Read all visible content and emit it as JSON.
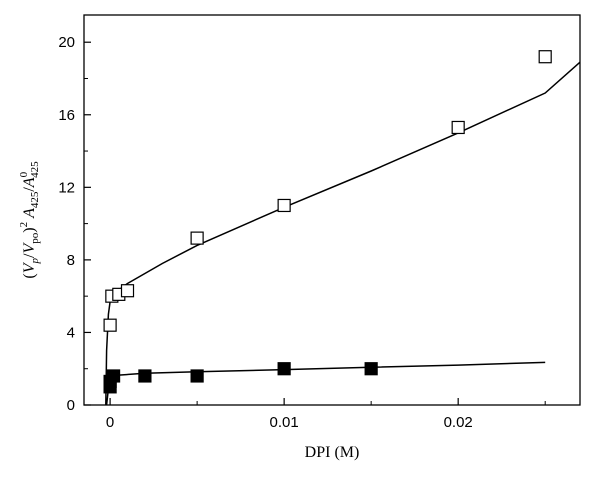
{
  "chart_data": {
    "type": "scatter",
    "title": "",
    "xlabel": "DPI (M)",
    "ylabel": {
      "full": "(Vp/Vpo)^2 A425/A0425",
      "p1": "(",
      "v1": "V",
      "s1": "p",
      "slash": "/",
      "v2": "V",
      "s2": "po",
      "p2": ")",
      "sup2": "2",
      "a1": "A",
      "s3": "425",
      "slash2": "/",
      "a2": "A",
      "sup0": "0",
      "s4": "425"
    },
    "xlim": [
      -0.0015,
      0.027
    ],
    "ylim": [
      0,
      21.5
    ],
    "x_ticks": [
      0,
      0.01,
      0.02
    ],
    "x_tick_labels": [
      "0",
      "0.01",
      "0.02"
    ],
    "y_ticks": [
      0,
      4,
      8,
      12,
      16,
      20
    ],
    "y_tick_labels": [
      "0",
      "4",
      "8",
      "12",
      "16",
      "20"
    ],
    "grid": false,
    "legend": "none",
    "series": [
      {
        "marker": "open-square",
        "color": "#000000",
        "points": [
          {
            "x": 0.0,
            "y": 4.4
          },
          {
            "x": 0.0001,
            "y": 6.0
          },
          {
            "x": 0.0005,
            "y": 6.1
          },
          {
            "x": 0.001,
            "y": 6.3
          },
          {
            "x": 0.005,
            "y": 9.2
          },
          {
            "x": 0.01,
            "y": 11.0
          },
          {
            "x": 0.02,
            "y": 15.3
          },
          {
            "x": 0.025,
            "y": 19.2
          }
        ]
      },
      {
        "marker": "filled-square",
        "color": "#000000",
        "points": [
          {
            "x": 0.0,
            "y": 1.0
          },
          {
            "x": 0.0,
            "y": 1.3
          },
          {
            "x": 0.0002,
            "y": 1.6
          },
          {
            "x": 0.002,
            "y": 1.6
          },
          {
            "x": 0.005,
            "y": 1.6
          },
          {
            "x": 0.01,
            "y": 2.0
          },
          {
            "x": 0.015,
            "y": 2.0
          }
        ]
      }
    ],
    "fit_curves": [
      {
        "color": "#000000",
        "points": [
          {
            "x": -0.00025,
            "y": 0.0
          },
          {
            "x": -0.0002,
            "y": 3.0
          },
          {
            "x": -0.0001,
            "y": 5.0
          },
          {
            "x": 0.0,
            "y": 5.7
          },
          {
            "x": 0.0003,
            "y": 6.2
          },
          {
            "x": 0.001,
            "y": 6.7
          },
          {
            "x": 0.003,
            "y": 7.8
          },
          {
            "x": 0.005,
            "y": 8.8
          },
          {
            "x": 0.01,
            "y": 10.9
          },
          {
            "x": 0.015,
            "y": 12.9
          },
          {
            "x": 0.02,
            "y": 15.0
          },
          {
            "x": 0.025,
            "y": 17.2
          },
          {
            "x": 0.027,
            "y": 18.9
          }
        ]
      },
      {
        "color": "#000000",
        "points": [
          {
            "x": -0.0002,
            "y": 0.0
          },
          {
            "x": -0.0001,
            "y": 0.9
          },
          {
            "x": 0.0,
            "y": 1.4
          },
          {
            "x": 0.0005,
            "y": 1.65
          },
          {
            "x": 0.002,
            "y": 1.75
          },
          {
            "x": 0.005,
            "y": 1.83
          },
          {
            "x": 0.01,
            "y": 1.95
          },
          {
            "x": 0.015,
            "y": 2.08
          },
          {
            "x": 0.02,
            "y": 2.2
          },
          {
            "x": 0.025,
            "y": 2.35
          }
        ]
      }
    ]
  }
}
